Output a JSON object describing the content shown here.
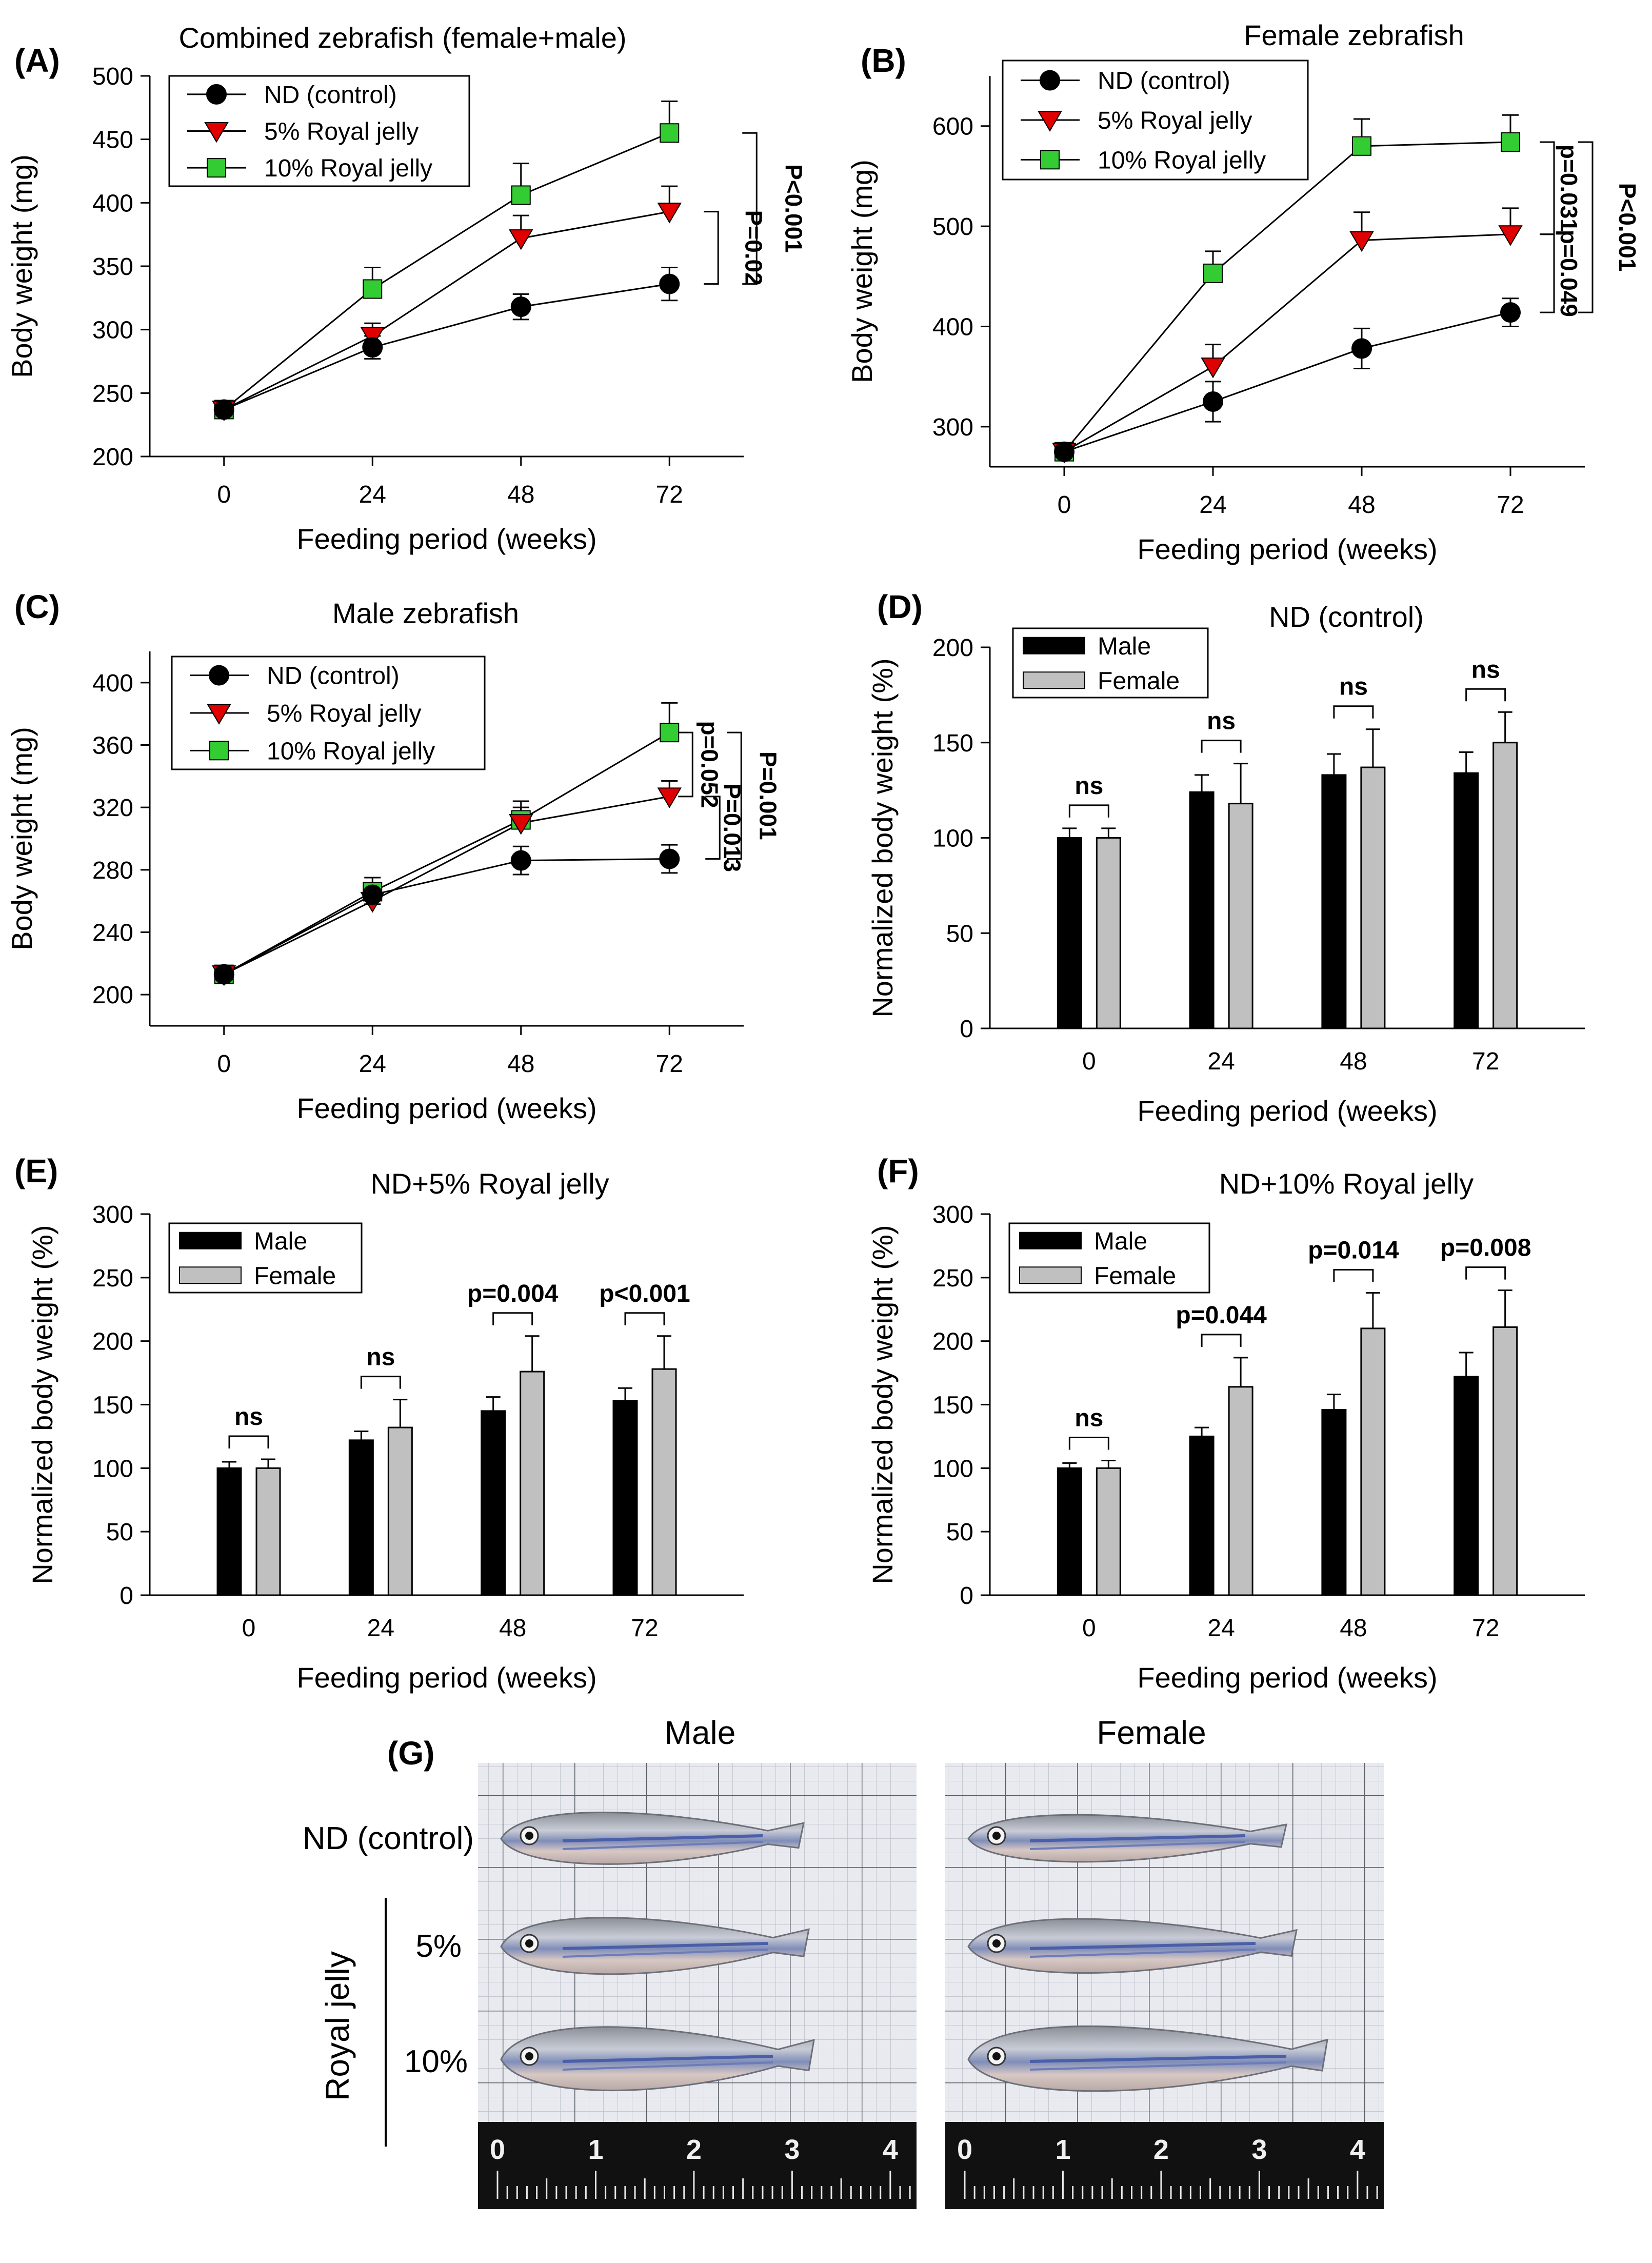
{
  "chart_data": [
    {
      "panel": "(A)",
      "type": "line",
      "title": "Combined zebrafish (female+male)",
      "xlabel": "Feeding period (weeks)",
      "ylabel": "Body weight (mg)",
      "x": [
        0,
        24,
        48,
        72
      ],
      "xlim": [
        -12,
        84
      ],
      "ylim": [
        200,
        500
      ],
      "yticks": [
        200,
        250,
        300,
        350,
        400,
        450,
        500
      ],
      "legend": "top-left",
      "series": [
        {
          "name": "ND (control)",
          "marker": "circle",
          "color": "#000000",
          "values": [
            237,
            286,
            318,
            336
          ],
          "errors": [
            5,
            9,
            10,
            13
          ]
        },
        {
          "name": "5% Royal jelly",
          "marker": "triangle-down",
          "color": "#e00000",
          "values": [
            237,
            295,
            372,
            393
          ],
          "errors": [
            5,
            10,
            18,
            20
          ]
        },
        {
          "name": "10% Royal jelly",
          "marker": "square",
          "color": "#33cc33",
          "values": [
            237,
            332,
            406,
            455
          ],
          "errors": [
            5,
            17,
            25,
            25
          ]
        }
      ],
      "annotations": [
        {
          "text": "P=0.02",
          "from": 393,
          "to": 336
        },
        {
          "text": "P<0.001",
          "from": 455,
          "to": 336
        }
      ]
    },
    {
      "panel": "(B)",
      "type": "line",
      "title": "Female zebrafish",
      "xlabel": "Feeding period (weeks)",
      "ylabel": "Body weight (mg)",
      "x": [
        0,
        24,
        48,
        72
      ],
      "xlim": [
        -12,
        84
      ],
      "ylim": [
        260,
        650
      ],
      "yticks": [
        300,
        400,
        500,
        600
      ],
      "legend": "top-left",
      "series": [
        {
          "name": "ND (control)",
          "marker": "circle",
          "color": "#000000",
          "values": [
            275,
            325,
            378,
            414
          ],
          "errors": [
            8,
            20,
            20,
            14
          ]
        },
        {
          "name": "5% Royal jelly",
          "marker": "triangle-down",
          "color": "#e00000",
          "values": [
            275,
            360,
            486,
            492
          ],
          "errors": [
            8,
            22,
            28,
            26
          ]
        },
        {
          "name": "10% Royal jelly",
          "marker": "square",
          "color": "#33cc33",
          "values": [
            275,
            453,
            580,
            584
          ],
          "errors": [
            8,
            22,
            27,
            27
          ]
        }
      ],
      "annotations": [
        {
          "text": "p=0.031",
          "from": 584,
          "to": 492
        },
        {
          "text": "p=0.049",
          "from": 492,
          "to": 414
        },
        {
          "text": "P<0.001",
          "from": 584,
          "to": 414
        }
      ]
    },
    {
      "panel": "(C)",
      "type": "line",
      "title": "Male zebrafish",
      "xlabel": "Feeding period (weeks)",
      "ylabel": "Body weight (mg)",
      "x": [
        0,
        24,
        48,
        72
      ],
      "xlim": [
        -12,
        84
      ],
      "ylim": [
        180,
        420
      ],
      "yticks": [
        200,
        240,
        280,
        320,
        360,
        400
      ],
      "legend": "top-left",
      "series": [
        {
          "name": "ND (control)",
          "marker": "circle",
          "color": "#000000",
          "values": [
            213,
            264,
            286,
            287
          ],
          "errors": [
            4,
            6,
            9,
            9
          ]
        },
        {
          "name": "5% Royal jelly",
          "marker": "triangle-down",
          "color": "#e00000",
          "values": [
            213,
            260,
            310,
            327
          ],
          "errors": [
            4,
            6,
            10,
            10
          ]
        },
        {
          "name": "10% Royal jelly",
          "marker": "square",
          "color": "#33cc33",
          "values": [
            213,
            266,
            312,
            368
          ],
          "errors": [
            4,
            9,
            12,
            19
          ]
        }
      ],
      "annotations": [
        {
          "text": "p=0.052",
          "from": 368,
          "to": 327
        },
        {
          "text": "P=0.013",
          "from": 327,
          "to": 287
        },
        {
          "text": "P=0.001",
          "from": 368,
          "to": 287
        }
      ]
    },
    {
      "panel": "(D)",
      "type": "bar",
      "title": "ND (control)",
      "xlabel": "Feeding period (weeks)",
      "ylabel": "Normalized body weight (%)",
      "categories": [
        "0",
        "24",
        "48",
        "72"
      ],
      "ylim": [
        0,
        200
      ],
      "yticks": [
        0,
        50,
        100,
        150,
        200
      ],
      "legend": "top-left",
      "series": [
        {
          "name": "Male",
          "color": "#000000",
          "values": [
            100,
            124,
            133,
            134
          ],
          "errors": [
            5,
            9,
            11,
            11
          ]
        },
        {
          "name": "Female",
          "color": "#c0c0c0",
          "values": [
            100,
            118,
            137,
            150
          ],
          "errors": [
            5,
            21,
            20,
            16
          ]
        }
      ],
      "significance": [
        "ns",
        "ns",
        "ns",
        "ns"
      ]
    },
    {
      "panel": "(E)",
      "type": "bar",
      "title": "ND+5% Royal jelly",
      "xlabel": "Feeding period (weeks)",
      "ylabel": "Normalized body weight (%)",
      "categories": [
        "0",
        "24",
        "48",
        "72"
      ],
      "ylim": [
        0,
        300
      ],
      "yticks": [
        0,
        50,
        100,
        150,
        200,
        250,
        300
      ],
      "legend": "top-left",
      "series": [
        {
          "name": "Male",
          "color": "#000000",
          "values": [
            100,
            122,
            145,
            153
          ],
          "errors": [
            5,
            7,
            11,
            10
          ]
        },
        {
          "name": "Female",
          "color": "#c0c0c0",
          "values": [
            100,
            132,
            176,
            178
          ],
          "errors": [
            7,
            22,
            28,
            26
          ]
        }
      ],
      "significance": [
        "ns",
        "ns",
        "p=0.004",
        "p<0.001"
      ]
    },
    {
      "panel": "(F)",
      "type": "bar",
      "title": "ND+10% Royal jelly",
      "xlabel": "Feeding period (weeks)",
      "ylabel": "Normalized body weight (%)",
      "categories": [
        "0",
        "24",
        "48",
        "72"
      ],
      "ylim": [
        0,
        300
      ],
      "yticks": [
        0,
        50,
        100,
        150,
        200,
        250,
        300
      ],
      "legend": "top-left",
      "series": [
        {
          "name": "Male",
          "color": "#000000",
          "values": [
            100,
            125,
            146,
            172
          ],
          "errors": [
            4,
            7,
            12,
            19
          ]
        },
        {
          "name": "Female",
          "color": "#c0c0c0",
          "values": [
            100,
            164,
            210,
            211
          ],
          "errors": [
            6,
            23,
            28,
            29
          ]
        }
      ],
      "significance": [
        "ns",
        "p=0.044",
        "p=0.014",
        "p=0.008"
      ]
    }
  ],
  "photo": {
    "panel": "(G)",
    "columns": [
      "Male",
      "Female"
    ],
    "rows": [
      "ND (control)",
      "5%",
      "10%"
    ],
    "group_label": "Royal jelly",
    "ruler_ticks": [
      "0",
      "1",
      "2",
      "3",
      "4"
    ]
  }
}
